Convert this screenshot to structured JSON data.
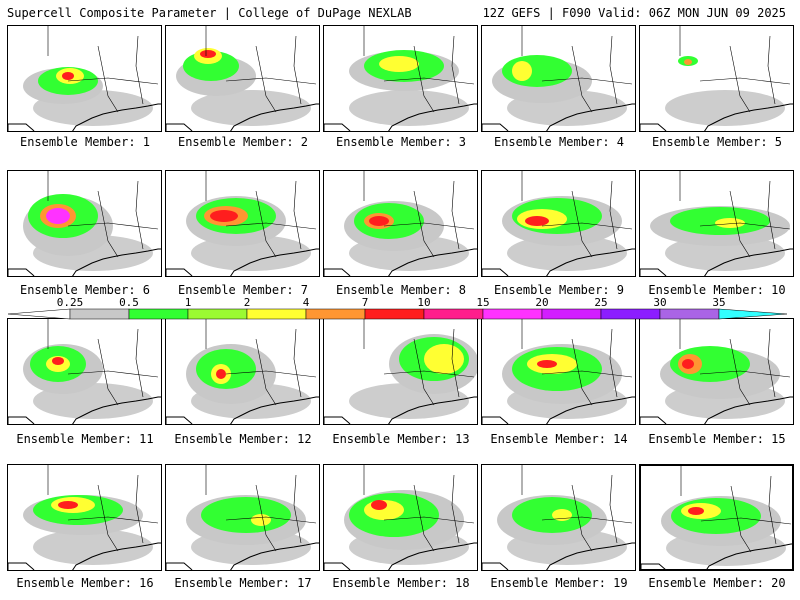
{
  "header": {
    "title": "Supercell Composite Parameter | College of DuPage NEXLAB",
    "run_info": "12Z GEFS | F090 Valid: 06Z MON JUN 09 2025"
  },
  "colorbar": {
    "ticks": [
      "0.25",
      "0.5",
      "1",
      "2",
      "4",
      "7",
      "10",
      "15",
      "20",
      "25",
      "30",
      "35"
    ],
    "colors": [
      "#ffffff",
      "#c8c8c8",
      "#32ff32",
      "#9bfa32",
      "#ffff32",
      "#ff9632",
      "#ff1e1e",
      "#ff1e8c",
      "#ff32ff",
      "#d21eff",
      "#8c1eff",
      "#aa64e6",
      "#32ffff"
    ]
  },
  "members": [
    {
      "label": "Ensemble Member: 1",
      "selected": false
    },
    {
      "label": "Ensemble Member: 2",
      "selected": false
    },
    {
      "label": "Ensemble Member: 3",
      "selected": false
    },
    {
      "label": "Ensemble Member: 4",
      "selected": false
    },
    {
      "label": "Ensemble Member: 5",
      "selected": false
    },
    {
      "label": "Ensemble Member: 6",
      "selected": false
    },
    {
      "label": "Ensemble Member: 7",
      "selected": false
    },
    {
      "label": "Ensemble Member: 8",
      "selected": false
    },
    {
      "label": "Ensemble Member: 9",
      "selected": false
    },
    {
      "label": "Ensemble Member: 10",
      "selected": false
    },
    {
      "label": "Ensemble Member: 11",
      "selected": false
    },
    {
      "label": "Ensemble Member: 12",
      "selected": false
    },
    {
      "label": "Ensemble Member: 13",
      "selected": false
    },
    {
      "label": "Ensemble Member: 14",
      "selected": false
    },
    {
      "label": "Ensemble Member: 15",
      "selected": false
    },
    {
      "label": "Ensemble Member: 16",
      "selected": false
    },
    {
      "label": "Ensemble Member: 17",
      "selected": false
    },
    {
      "label": "Ensemble Member: 18",
      "selected": false
    },
    {
      "label": "Ensemble Member: 19",
      "selected": false
    },
    {
      "label": "Ensemble Member: 20",
      "selected": true
    }
  ]
}
